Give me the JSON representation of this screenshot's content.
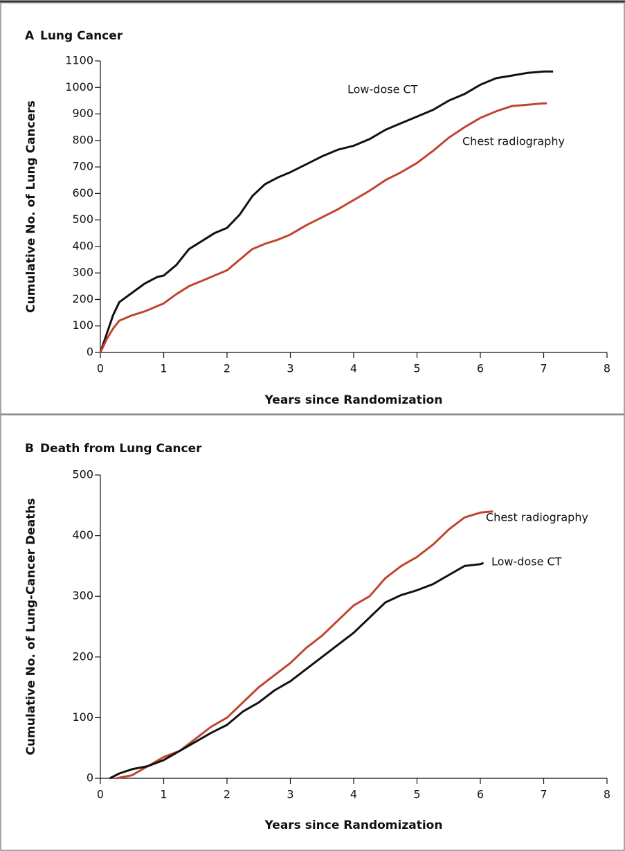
{
  "chart_data": [
    {
      "type": "line",
      "panel_label": "A",
      "title": "Lung Cancer",
      "xlabel": "Years since Randomization",
      "ylabel": "Cumulative No. of Lung Cancers",
      "xlim": [
        0,
        8
      ],
      "xticks": [
        0,
        1,
        2,
        3,
        4,
        5,
        6,
        7,
        8
      ],
      "ylim": [
        0,
        1100
      ],
      "yticks": [
        0,
        100,
        200,
        300,
        400,
        500,
        600,
        700,
        800,
        900,
        1000,
        1100
      ],
      "series": [
        {
          "name": "Low-dose CT",
          "color": "#111111",
          "x": [
            0,
            0.1,
            0.2,
            0.3,
            0.5,
            0.7,
            0.9,
            1.0,
            1.2,
            1.4,
            1.6,
            1.8,
            2.0,
            2.2,
            2.4,
            2.6,
            2.8,
            3.0,
            3.25,
            3.5,
            3.75,
            4.0,
            4.25,
            4.5,
            4.75,
            5.0,
            5.25,
            5.5,
            5.75,
            6.0,
            6.25,
            6.5,
            6.75,
            7.0,
            7.15
          ],
          "values": [
            0,
            70,
            140,
            190,
            225,
            260,
            285,
            290,
            330,
            390,
            420,
            450,
            470,
            520,
            590,
            635,
            660,
            680,
            710,
            740,
            765,
            780,
            805,
            840,
            865,
            890,
            915,
            950,
            975,
            1010,
            1035,
            1045,
            1055,
            1060,
            1060
          ]
        },
        {
          "name": "Chest radiography",
          "color": "#c0452f",
          "x": [
            0,
            0.1,
            0.2,
            0.3,
            0.5,
            0.7,
            0.9,
            1.0,
            1.2,
            1.4,
            1.6,
            1.8,
            2.0,
            2.2,
            2.4,
            2.6,
            2.8,
            3.0,
            3.25,
            3.5,
            3.75,
            4.0,
            4.25,
            4.5,
            4.75,
            5.0,
            5.25,
            5.5,
            5.75,
            6.0,
            6.25,
            6.5,
            6.75,
            7.0,
            7.05
          ],
          "values": [
            0,
            50,
            90,
            120,
            140,
            155,
            175,
            185,
            220,
            250,
            270,
            290,
            310,
            350,
            390,
            410,
            425,
            445,
            480,
            510,
            540,
            575,
            610,
            650,
            680,
            715,
            760,
            810,
            850,
            885,
            910,
            930,
            935,
            940,
            940
          ]
        }
      ]
    },
    {
      "type": "line",
      "panel_label": "B",
      "title": "Death from Lung Cancer",
      "xlabel": "Years since Randomization",
      "ylabel": "Cumulative No. of Lung-Cancer Deaths",
      "xlim": [
        0,
        8
      ],
      "xticks": [
        0,
        1,
        2,
        3,
        4,
        5,
        6,
        7,
        8
      ],
      "ylim": [
        0,
        500
      ],
      "yticks": [
        0,
        100,
        200,
        300,
        400,
        500
      ],
      "series": [
        {
          "name": "Chest radiography",
          "color": "#c0452f",
          "x": [
            0.25,
            0.5,
            0.75,
            1.0,
            1.25,
            1.5,
            1.75,
            2.0,
            2.25,
            2.5,
            2.75,
            3.0,
            3.25,
            3.5,
            3.75,
            4.0,
            4.25,
            4.5,
            4.75,
            5.0,
            5.25,
            5.5,
            5.75,
            6.0,
            6.2
          ],
          "values": [
            0,
            5,
            20,
            35,
            45,
            65,
            85,
            100,
            125,
            150,
            170,
            190,
            215,
            235,
            260,
            285,
            300,
            330,
            350,
            365,
            385,
            410,
            430,
            438,
            440
          ]
        },
        {
          "name": "Low-dose CT",
          "color": "#111111",
          "x": [
            0.15,
            0.3,
            0.5,
            0.75,
            1.0,
            1.25,
            1.5,
            1.75,
            2.0,
            2.25,
            2.5,
            2.75,
            3.0,
            3.25,
            3.5,
            3.75,
            4.0,
            4.25,
            4.5,
            4.75,
            5.0,
            5.25,
            5.5,
            5.75,
            6.0,
            6.05
          ],
          "values": [
            0,
            8,
            15,
            20,
            30,
            45,
            60,
            75,
            88,
            110,
            125,
            145,
            160,
            180,
            200,
            220,
            240,
            265,
            290,
            302,
            310,
            320,
            335,
            350,
            353,
            355
          ]
        }
      ]
    }
  ]
}
